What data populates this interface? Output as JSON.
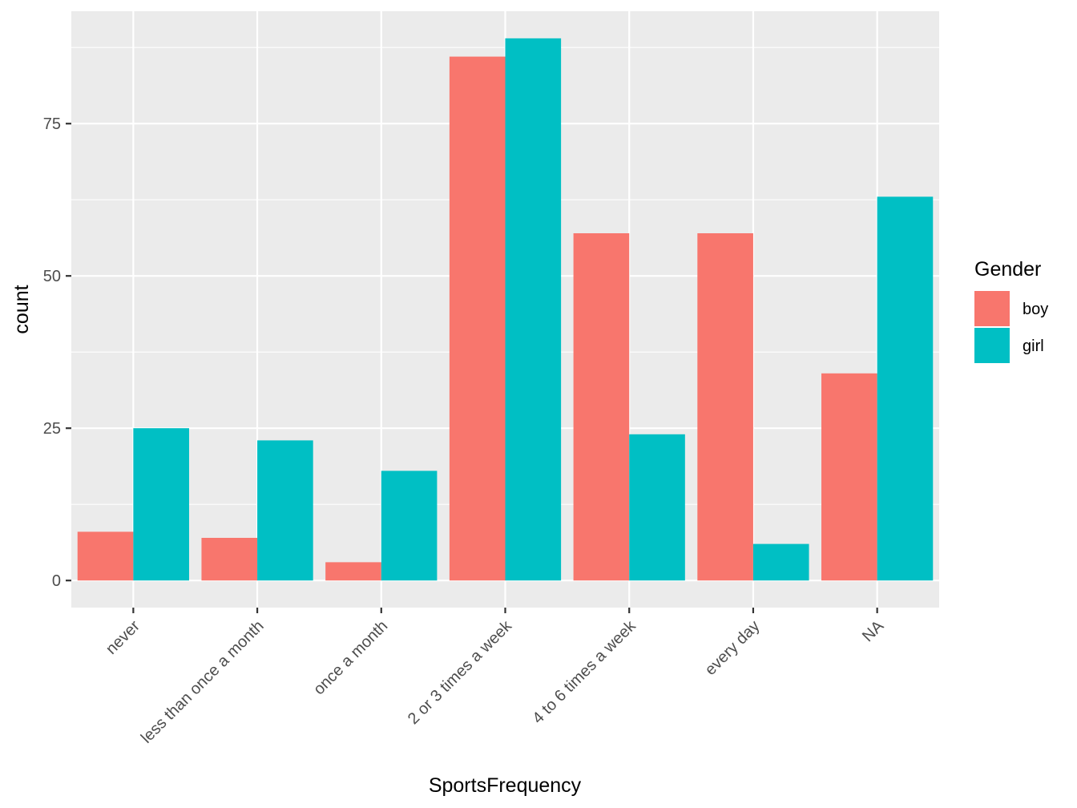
{
  "chart_data": {
    "type": "bar",
    "xlabel": "SportsFrequency",
    "ylabel": "count",
    "categories": [
      "never",
      "less than once a month",
      "once a month",
      "2 or 3 times a week",
      "4 to 6 times a week",
      "every day",
      "NA"
    ],
    "series": [
      {
        "name": "boy",
        "color": "#F8766D",
        "values": [
          8,
          7,
          3,
          86,
          57,
          57,
          34
        ]
      },
      {
        "name": "girl",
        "color": "#00BFC4",
        "values": [
          25,
          23,
          18,
          89,
          24,
          6,
          63
        ]
      }
    ],
    "yticks": [
      0,
      25,
      50,
      75
    ],
    "ylim": [
      -4.45,
      93.45
    ],
    "grid": true,
    "legend": {
      "title": "Gender",
      "position": "right"
    }
  }
}
